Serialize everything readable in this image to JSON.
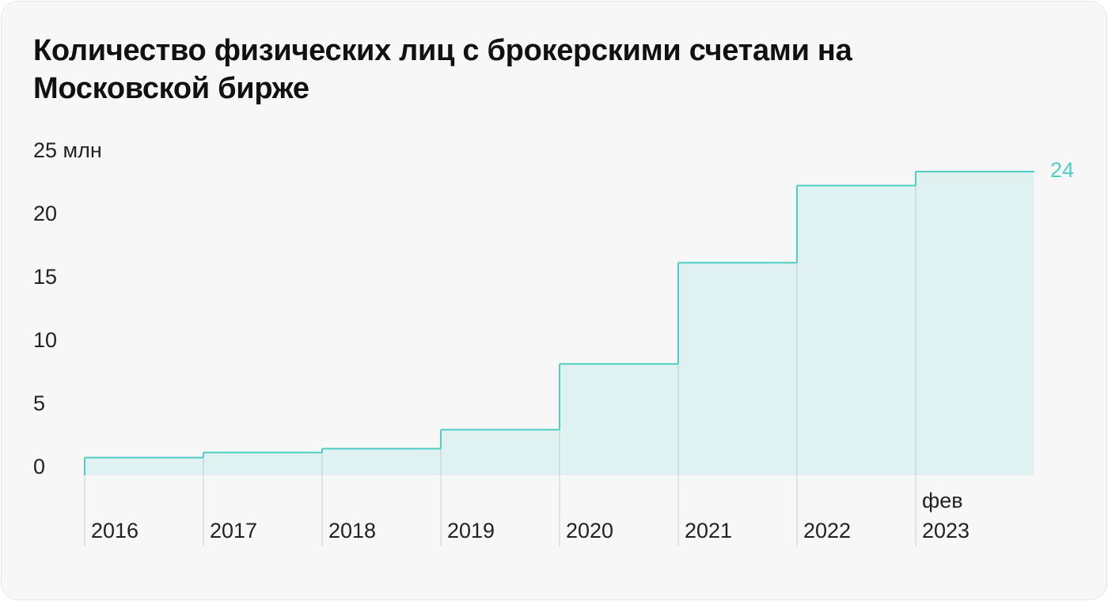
{
  "chart_data": {
    "type": "step",
    "title": "Количество физических лиц с брокерскими счетами на Московской бирже",
    "categories": [
      "2016",
      "2017",
      "2018",
      "2019",
      "2020",
      "2021",
      "2022",
      "фев 2023"
    ],
    "values": [
      1.4,
      1.8,
      2.1,
      3.6,
      8.8,
      16.8,
      22.9,
      24
    ],
    "color": "#4fcfc3",
    "ylim": [
      0,
      25
    ],
    "yticks": [
      0,
      5,
      10,
      15,
      20,
      {
        "value": 25,
        "label": "25 млн"
      }
    ]
  }
}
